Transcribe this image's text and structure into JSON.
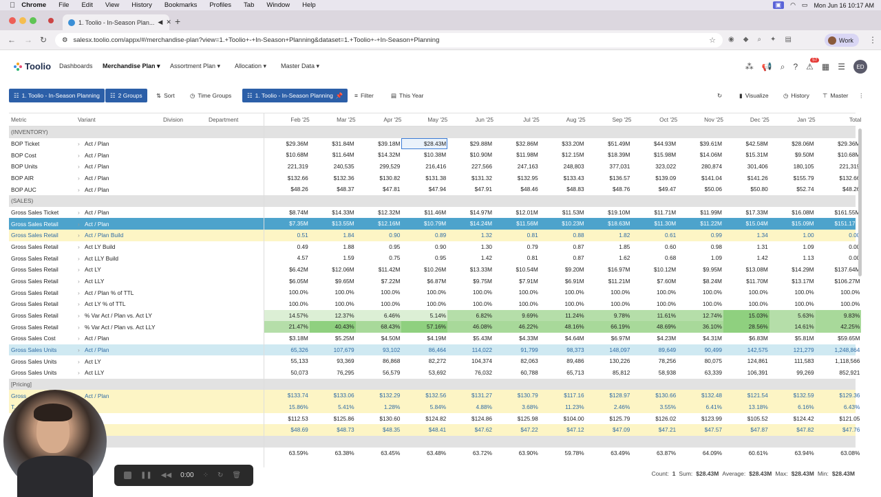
{
  "mac_menu": {
    "app": "Chrome",
    "items": [
      "File",
      "Edit",
      "View",
      "History",
      "Bookmarks",
      "Profiles",
      "Tab",
      "Window",
      "Help"
    ],
    "clock": "Mon Jun 16  10:17 AM"
  },
  "browser": {
    "tab_title": "1. Toolio - In-Season Plan...",
    "url": "salesx.toolio.com/appx/#/merchandise-plan?view=1.+Toolio+-+In-Season+Planning&dataset=1.+Toolio+-+In-Season+Planning",
    "profile": "Work"
  },
  "app_nav": {
    "logo": "Toolio",
    "links": [
      "Dashboards",
      "Merchandise Plan",
      "Assortment Plan",
      "Allocation",
      "Master Data"
    ],
    "notif_count": "57",
    "avatar": "ED"
  },
  "toolbar": {
    "view": "1. Toolio - In-Season Planning",
    "groups": "2 Groups",
    "sort": "Sort",
    "time_groups": "Time Groups",
    "dataset": "1. Toolio - In-Season Planning",
    "filter": "Filter",
    "period": "This Year",
    "visualize": "Visualize",
    "history": "History",
    "master": "Master"
  },
  "grid": {
    "columns": {
      "metric": "Metric",
      "variant": "Variant",
      "division": "Division",
      "department": "Department",
      "months": [
        "Feb '25",
        "Mar '25",
        "Apr '25",
        "May '25",
        "Jun '25",
        "Jul '25",
        "Aug '25",
        "Sep '25",
        "Oct '25",
        "Nov '25",
        "Dec '25",
        "Jan '25",
        "Total"
      ]
    },
    "rows": [
      {
        "section": "(INVENTORY)"
      },
      {
        "metric": "BOP Ticket",
        "variant": "Act / Plan",
        "values": [
          "$29.36M",
          "$31.84M",
          "$39.18M",
          "$28.43M",
          "$29.88M",
          "$32.86M",
          "$33.20M",
          "$51.49M",
          "$44.93M",
          "$39.61M",
          "$42.58M",
          "$28.06M",
          "$29.36M"
        ],
        "style": "bop"
      },
      {
        "metric": "BOP Cost",
        "variant": "Act / Plan",
        "values": [
          "$10.68M",
          "$11.64M",
          "$14.32M",
          "$10.38M",
          "$10.90M",
          "$11.98M",
          "$12.15M",
          "$18.39M",
          "$15.98M",
          "$14.06M",
          "$15.31M",
          "$9.50M",
          "$10.68M"
        ]
      },
      {
        "metric": "BOP Units",
        "variant": "Act / Plan",
        "values": [
          "221,319",
          "240,535",
          "299,529",
          "216,416",
          "227,566",
          "247,163",
          "248,803",
          "377,031",
          "323,022",
          "280,874",
          "301,406",
          "180,105",
          "221,319"
        ]
      },
      {
        "metric": "BOP AIR",
        "variant": "Act / Plan",
        "values": [
          "$132.66",
          "$132.36",
          "$130.82",
          "$131.38",
          "$131.32",
          "$132.95",
          "$133.43",
          "$136.57",
          "$139.09",
          "$141.04",
          "$141.26",
          "$155.79",
          "$132.66"
        ]
      },
      {
        "metric": "BOP AUC",
        "variant": "Act / Plan",
        "values": [
          "$48.26",
          "$48.37",
          "$47.81",
          "$47.94",
          "$47.91",
          "$48.46",
          "$48.83",
          "$48.76",
          "$49.47",
          "$50.06",
          "$50.80",
          "$52.74",
          "$48.26"
        ]
      },
      {
        "section": "(SALES)"
      },
      {
        "metric": "Gross Sales Ticket",
        "variant": "Act / Plan",
        "values": [
          "$8.74M",
          "$14.33M",
          "$12.32M",
          "$11.46M",
          "$14.97M",
          "$12.01M",
          "$11.53M",
          "$19.10M",
          "$11.71M",
          "$11.99M",
          "$17.33M",
          "$16.08M",
          "$161.55M"
        ]
      },
      {
        "metric": "Gross Sales Retail",
        "variant": "Act / Plan",
        "values": [
          "$7.35M",
          "$13.55M",
          "$12.16M",
          "$10.79M",
          "$14.24M",
          "$11.56M",
          "$10.23M",
          "$18.63M",
          "$11.30M",
          "$11.22M",
          "$15.04M",
          "$15.09M",
          "$151.17M"
        ],
        "style": "sel"
      },
      {
        "metric": "Gross Sales Retail",
        "variant": "Act / Plan Build",
        "values": [
          "0.51",
          "1.84",
          "0.90",
          "0.89",
          "1.32",
          "0.81",
          "0.88",
          "1.82",
          "0.61",
          "0.99",
          "1.34",
          "1.00",
          "0.00"
        ],
        "style": "yel"
      },
      {
        "metric": "Gross Sales Retail",
        "variant": "Act LY Build",
        "values": [
          "0.49",
          "1.88",
          "0.95",
          "0.90",
          "1.30",
          "0.79",
          "0.87",
          "1.85",
          "0.60",
          "0.98",
          "1.31",
          "1.09",
          "0.00"
        ]
      },
      {
        "metric": "Gross Sales Retail",
        "variant": "Act LLY Build",
        "values": [
          "4.57",
          "1.59",
          "0.75",
          "0.95",
          "1.42",
          "0.81",
          "0.87",
          "1.62",
          "0.68",
          "1.09",
          "1.42",
          "1.13",
          "0.00"
        ]
      },
      {
        "metric": "Gross Sales Retail",
        "variant": "Act LY",
        "values": [
          "$6.42M",
          "$12.06M",
          "$11.42M",
          "$10.26M",
          "$13.33M",
          "$10.54M",
          "$9.20M",
          "$16.97M",
          "$10.12M",
          "$9.95M",
          "$13.08M",
          "$14.29M",
          "$137.64M"
        ]
      },
      {
        "metric": "Gross Sales Retail",
        "variant": "Act LLY",
        "values": [
          "$6.05M",
          "$9.65M",
          "$7.22M",
          "$6.87M",
          "$9.75M",
          "$7.91M",
          "$6.91M",
          "$11.21M",
          "$7.60M",
          "$8.24M",
          "$11.70M",
          "$13.17M",
          "$106.27M"
        ]
      },
      {
        "metric": "Gross Sales Retail",
        "variant": "Act / Plan % of TTL",
        "values": [
          "100.0%",
          "100.0%",
          "100.0%",
          "100.0%",
          "100.0%",
          "100.0%",
          "100.0%",
          "100.0%",
          "100.0%",
          "100.0%",
          "100.0%",
          "100.0%",
          "100.0%"
        ]
      },
      {
        "metric": "Gross Sales Retail",
        "variant": "Act LY % of TTL",
        "values": [
          "100.0%",
          "100.0%",
          "100.0%",
          "100.0%",
          "100.0%",
          "100.0%",
          "100.0%",
          "100.0%",
          "100.0%",
          "100.0%",
          "100.0%",
          "100.0%",
          "100.0%"
        ]
      },
      {
        "metric": "Gross Sales Retail",
        "variant": "% Var Act / Plan vs. Act LY",
        "values": [
          "14.57%",
          "12.37%",
          "6.46%",
          "5.14%",
          "6.82%",
          "9.69%",
          "11.24%",
          "9.78%",
          "11.61%",
          "12.74%",
          "15.03%",
          "5.63%",
          "9.83%"
        ],
        "style": "var1"
      },
      {
        "metric": "Gross Sales Retail",
        "variant": "% Var Act / Plan vs. Act LLY",
        "values": [
          "21.47%",
          "40.43%",
          "68.43%",
          "57.16%",
          "46.08%",
          "46.22%",
          "48.16%",
          "66.19%",
          "48.69%",
          "36.10%",
          "28.56%",
          "14.61%",
          "42.25%"
        ],
        "style": "var2"
      },
      {
        "metric": "Gross Sales Cost",
        "variant": "Act / Plan",
        "values": [
          "$3.18M",
          "$5.25M",
          "$4.50M",
          "$4.19M",
          "$5.43M",
          "$4.33M",
          "$4.64M",
          "$6.97M",
          "$4.23M",
          "$4.31M",
          "$6.83M",
          "$5.81M",
          "$59.65M"
        ]
      },
      {
        "metric": "Gross Sales Units",
        "variant": "Act / Plan",
        "values": [
          "65,326",
          "107,679",
          "93,102",
          "86,464",
          "114,022",
          "91,799",
          "98,373",
          "148,097",
          "89,649",
          "90,499",
          "142,575",
          "121,279",
          "1,248,864"
        ],
        "style": "cyan"
      },
      {
        "metric": "Gross Sales Units",
        "variant": "Act LY",
        "values": [
          "55,133",
          "93,369",
          "86,868",
          "82,272",
          "104,374",
          "82,063",
          "89,486",
          "130,226",
          "78,256",
          "80,075",
          "124,861",
          "111,583",
          "1,118,566"
        ]
      },
      {
        "metric": "Gross Sales Units",
        "variant": "Act LLY",
        "values": [
          "50,073",
          "76,295",
          "56,579",
          "53,692",
          "76,032",
          "60,788",
          "65,713",
          "85,812",
          "58,938",
          "63,339",
          "106,391",
          "99,269",
          "852,921"
        ]
      },
      {
        "section": "[Pricing]"
      },
      {
        "metric": "Gross ...",
        "variant": "Act / Plan",
        "values": [
          "$133.74",
          "$133.06",
          "$132.29",
          "$132.56",
          "$131.27",
          "$130.79",
          "$117.16",
          "$128.97",
          "$130.66",
          "$132.48",
          "$121.54",
          "$132.59",
          "$129.36"
        ],
        "style": "yel"
      },
      {
        "metric": "T...",
        "variant": "",
        "values": [
          "15.86%",
          "5.41%",
          "1.28%",
          "5.84%",
          "4.88%",
          "3.68%",
          "11.23%",
          "2.46%",
          "3.55%",
          "6.41%",
          "13.18%",
          "6.16%",
          "6.43%"
        ],
        "style": "yel"
      },
      {
        "metric": "",
        "variant": "...lan",
        "values": [
          "$112.53",
          "$125.86",
          "$130.60",
          "$124.82",
          "$124.86",
          "$125.98",
          "$104.00",
          "$125.79",
          "$126.02",
          "$123.99",
          "$105.52",
          "$124.42",
          "$121.05"
        ]
      },
      {
        "metric": "",
        "variant": "",
        "values": [
          "$48.69",
          "$48.73",
          "$48.35",
          "$48.41",
          "$47.62",
          "$47.22",
          "$47.12",
          "$47.09",
          "$47.21",
          "$47.57",
          "$47.87",
          "$47.82",
          "$47.76"
        ],
        "style": "yel"
      },
      {
        "section": ""
      },
      {
        "metric": "",
        "variant": "...lan",
        "values": [
          "63.59%",
          "63.38%",
          "63.45%",
          "63.48%",
          "63.72%",
          "63.90%",
          "59.78%",
          "63.49%",
          "63.87%",
          "64.09%",
          "60.61%",
          "63.94%",
          "63.08%"
        ]
      }
    ]
  },
  "status": {
    "count_label": "Count:",
    "count": "1",
    "sum_label": "Sum:",
    "sum": "$28.43M",
    "avg_label": "Average:",
    "avg": "$28.43M",
    "max_label": "Max:",
    "max": "$28.43M",
    "min_label": "Min:",
    "min": "$28.43M"
  },
  "recorder": {
    "time": "0:00"
  },
  "colors": {
    "accent": "#2c5fa8",
    "selected_row": "#4da3cc",
    "build_row": "#fdf5c5"
  }
}
